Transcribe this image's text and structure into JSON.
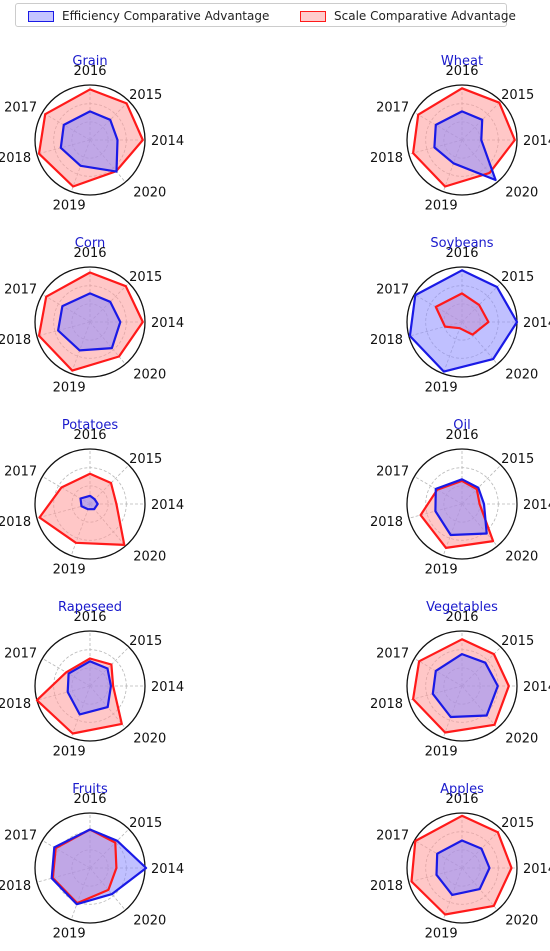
{
  "legend": {
    "efficiency_label": "Efficiency Comparative Advantage",
    "scale_label": "Scale Comparative Advantage",
    "efficiency_color": "#1a1ae6",
    "scale_color": "#ff1a1a",
    "efficiency_fill": "#8c8cff",
    "scale_fill": "#ff9999"
  },
  "chart_data": {
    "type": "radar",
    "axes": [
      "2014",
      "2015",
      "2016",
      "2017",
      "2018",
      "2019",
      "2020"
    ],
    "charts": [
      {
        "title": "Grain",
        "efficiency": [
          0.5,
          0.52,
          0.52,
          0.55,
          0.55,
          0.5,
          0.75
        ],
        "scale": [
          0.96,
          0.94,
          0.92,
          0.94,
          0.96,
          0.9,
          0.74
        ]
      },
      {
        "title": "Wheat",
        "efficiency": [
          0.35,
          0.52,
          0.52,
          0.55,
          0.52,
          0.45,
          0.95
        ],
        "scale": [
          0.96,
          0.96,
          0.94,
          0.92,
          0.92,
          0.9,
          0.78
        ]
      },
      {
        "title": "Corn",
        "efficiency": [
          0.55,
          0.52,
          0.52,
          0.58,
          0.6,
          0.55,
          0.62
        ],
        "scale": [
          0.96,
          0.92,
          0.9,
          0.92,
          0.96,
          0.94,
          0.82
        ]
      },
      {
        "title": "Soybeans",
        "efficiency": [
          1.0,
          0.9,
          0.94,
          0.98,
          0.98,
          0.96,
          0.88
        ],
        "scale": [
          0.48,
          0.44,
          0.52,
          0.55,
          0.32,
          0.12,
          0.3
        ]
      },
      {
        "title": "Potatoes",
        "efficiency": [
          0.14,
          0.12,
          0.15,
          0.2,
          0.16,
          0.1,
          0.12
        ],
        "scale": [
          0.48,
          0.54,
          0.55,
          0.6,
          0.95,
          0.75,
          0.97
        ]
      },
      {
        "title": "Oil",
        "efficiency": [
          0.4,
          0.42,
          0.45,
          0.55,
          0.5,
          0.6,
          0.7
        ],
        "scale": [
          0.32,
          0.38,
          0.42,
          0.52,
          0.78,
          0.85,
          0.88
        ]
      },
      {
        "title": "Rapeseed",
        "efficiency": [
          0.38,
          0.45,
          0.45,
          0.45,
          0.42,
          0.55,
          0.5
        ],
        "scale": [
          0.42,
          0.55,
          0.5,
          0.5,
          1.0,
          0.92,
          0.9
        ]
      },
      {
        "title": "Vegetables",
        "efficiency": [
          0.65,
          0.6,
          0.58,
          0.55,
          0.55,
          0.6,
          0.7
        ],
        "scale": [
          0.85,
          0.82,
          0.85,
          0.9,
          0.92,
          0.9,
          0.92
        ]
      },
      {
        "title": "Fruits",
        "efficiency": [
          1.02,
          0.7,
          0.7,
          0.75,
          0.72,
          0.7,
          0.62
        ],
        "scale": [
          0.48,
          0.65,
          0.7,
          0.72,
          0.7,
          0.68,
          0.52
        ]
      },
      {
        "title": "Apples",
        "efficiency": [
          0.5,
          0.5,
          0.5,
          0.52,
          0.48,
          0.52,
          0.5
        ],
        "scale": [
          0.9,
          0.92,
          0.95,
          0.98,
          0.95,
          0.9,
          0.9
        ]
      }
    ]
  }
}
